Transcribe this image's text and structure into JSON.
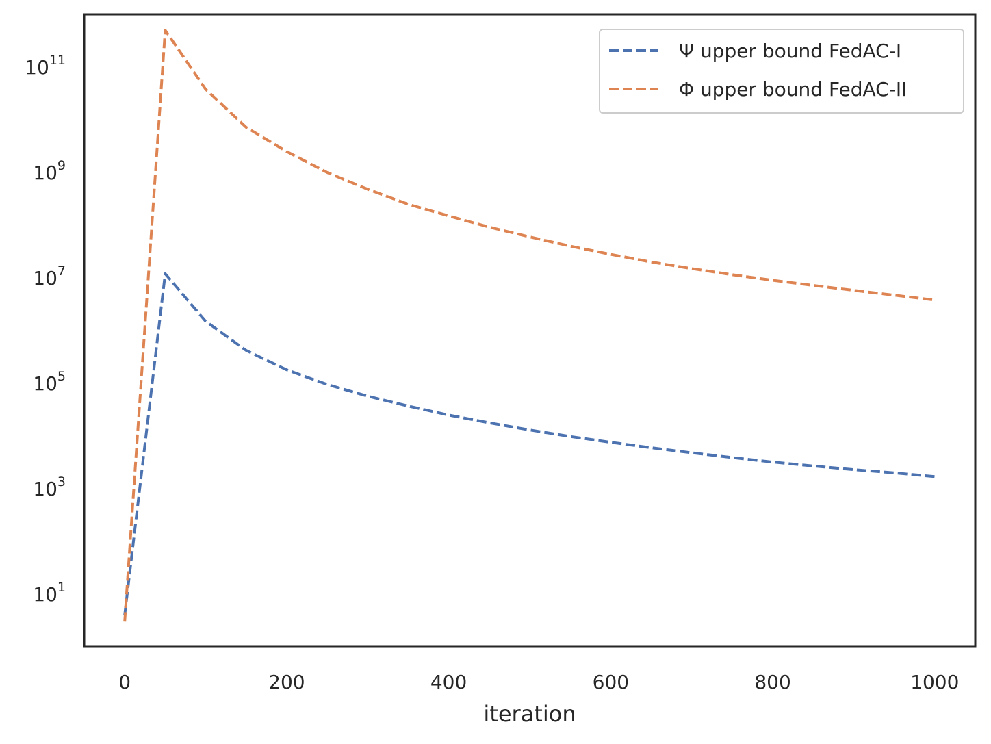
{
  "chart_data": {
    "type": "line",
    "title": "",
    "xlabel": "iteration",
    "ylabel": "",
    "x_ticks": [
      "0",
      "200",
      "400",
      "600",
      "800",
      "1000"
    ],
    "y_ticks": [
      {
        "base": "10",
        "exp": "1"
      },
      {
        "base": "10",
        "exp": "3"
      },
      {
        "base": "10",
        "exp": "5"
      },
      {
        "base": "10",
        "exp": "7"
      },
      {
        "base": "10",
        "exp": "9"
      },
      {
        "base": "10",
        "exp": "11"
      }
    ],
    "yscale": "log",
    "xlim": [
      -50,
      1050
    ],
    "ylim": [
      1,
      1000000000000
    ],
    "grid": false,
    "legend_position": "top-right",
    "series": [
      {
        "name": "Ψ upper bound FedAC-I",
        "color": "#4c72b0",
        "linestyle": "dashed",
        "x": [
          0,
          50,
          100,
          150,
          200,
          250,
          300,
          350,
          400,
          450,
          500,
          550,
          600,
          650,
          700,
          750,
          800,
          850,
          900,
          950,
          1000
        ],
        "y": [
          4,
          12000000,
          1500000,
          420000,
          180000,
          95000,
          57000,
          37000,
          25000,
          17800,
          13000,
          9800,
          7600,
          6000,
          4800,
          3900,
          3200,
          2700,
          2300,
          2000,
          1700
        ]
      },
      {
        "name": "Φ upper bound FedAC-II",
        "color": "#dd8452",
        "linestyle": "dashed",
        "x": [
          0,
          50,
          100,
          150,
          200,
          250,
          300,
          350,
          400,
          450,
          500,
          550,
          600,
          650,
          700,
          750,
          800,
          850,
          900,
          950,
          1000
        ],
        "y": [
          3,
          500000000000,
          38000000000,
          7200000000,
          2500000000,
          1000000000,
          480000000,
          250000000,
          150000000,
          92000000,
          60000000,
          40000000,
          28000000,
          20000000,
          15000000,
          11500000,
          9000000,
          7200000,
          5800000,
          4700000,
          3800000
        ]
      }
    ]
  }
}
